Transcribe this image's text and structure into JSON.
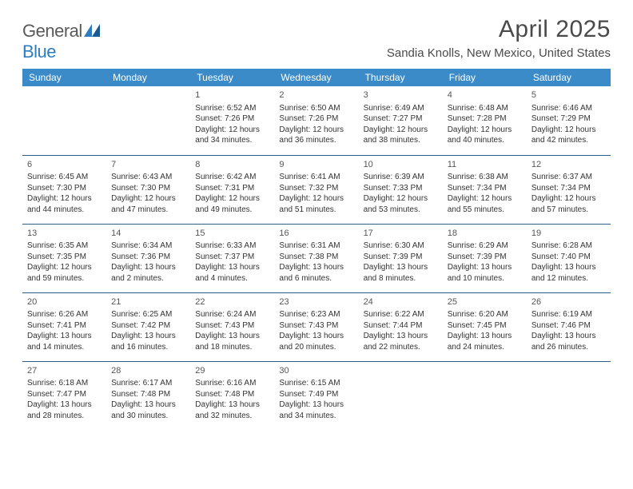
{
  "brand": {
    "part1": "General",
    "part2": "Blue"
  },
  "title": "April 2025",
  "location": "Sandia Knolls, New Mexico, United States",
  "colors": {
    "header_bg": "#3b8bc9",
    "header_text": "#ffffff",
    "rule": "#2f5d87",
    "body_text": "#333333",
    "title_text": "#4a4a4a"
  },
  "day_names": [
    "Sunday",
    "Monday",
    "Tuesday",
    "Wednesday",
    "Thursday",
    "Friday",
    "Saturday"
  ],
  "weeks": [
    [
      null,
      null,
      {
        "n": "1",
        "sr": "Sunrise: 6:52 AM",
        "ss": "Sunset: 7:26 PM",
        "dl": "Daylight: 12 hours and 34 minutes."
      },
      {
        "n": "2",
        "sr": "Sunrise: 6:50 AM",
        "ss": "Sunset: 7:26 PM",
        "dl": "Daylight: 12 hours and 36 minutes."
      },
      {
        "n": "3",
        "sr": "Sunrise: 6:49 AM",
        "ss": "Sunset: 7:27 PM",
        "dl": "Daylight: 12 hours and 38 minutes."
      },
      {
        "n": "4",
        "sr": "Sunrise: 6:48 AM",
        "ss": "Sunset: 7:28 PM",
        "dl": "Daylight: 12 hours and 40 minutes."
      },
      {
        "n": "5",
        "sr": "Sunrise: 6:46 AM",
        "ss": "Sunset: 7:29 PM",
        "dl": "Daylight: 12 hours and 42 minutes."
      }
    ],
    [
      {
        "n": "6",
        "sr": "Sunrise: 6:45 AM",
        "ss": "Sunset: 7:30 PM",
        "dl": "Daylight: 12 hours and 44 minutes."
      },
      {
        "n": "7",
        "sr": "Sunrise: 6:43 AM",
        "ss": "Sunset: 7:30 PM",
        "dl": "Daylight: 12 hours and 47 minutes."
      },
      {
        "n": "8",
        "sr": "Sunrise: 6:42 AM",
        "ss": "Sunset: 7:31 PM",
        "dl": "Daylight: 12 hours and 49 minutes."
      },
      {
        "n": "9",
        "sr": "Sunrise: 6:41 AM",
        "ss": "Sunset: 7:32 PM",
        "dl": "Daylight: 12 hours and 51 minutes."
      },
      {
        "n": "10",
        "sr": "Sunrise: 6:39 AM",
        "ss": "Sunset: 7:33 PM",
        "dl": "Daylight: 12 hours and 53 minutes."
      },
      {
        "n": "11",
        "sr": "Sunrise: 6:38 AM",
        "ss": "Sunset: 7:34 PM",
        "dl": "Daylight: 12 hours and 55 minutes."
      },
      {
        "n": "12",
        "sr": "Sunrise: 6:37 AM",
        "ss": "Sunset: 7:34 PM",
        "dl": "Daylight: 12 hours and 57 minutes."
      }
    ],
    [
      {
        "n": "13",
        "sr": "Sunrise: 6:35 AM",
        "ss": "Sunset: 7:35 PM",
        "dl": "Daylight: 12 hours and 59 minutes."
      },
      {
        "n": "14",
        "sr": "Sunrise: 6:34 AM",
        "ss": "Sunset: 7:36 PM",
        "dl": "Daylight: 13 hours and 2 minutes."
      },
      {
        "n": "15",
        "sr": "Sunrise: 6:33 AM",
        "ss": "Sunset: 7:37 PM",
        "dl": "Daylight: 13 hours and 4 minutes."
      },
      {
        "n": "16",
        "sr": "Sunrise: 6:31 AM",
        "ss": "Sunset: 7:38 PM",
        "dl": "Daylight: 13 hours and 6 minutes."
      },
      {
        "n": "17",
        "sr": "Sunrise: 6:30 AM",
        "ss": "Sunset: 7:39 PM",
        "dl": "Daylight: 13 hours and 8 minutes."
      },
      {
        "n": "18",
        "sr": "Sunrise: 6:29 AM",
        "ss": "Sunset: 7:39 PM",
        "dl": "Daylight: 13 hours and 10 minutes."
      },
      {
        "n": "19",
        "sr": "Sunrise: 6:28 AM",
        "ss": "Sunset: 7:40 PM",
        "dl": "Daylight: 13 hours and 12 minutes."
      }
    ],
    [
      {
        "n": "20",
        "sr": "Sunrise: 6:26 AM",
        "ss": "Sunset: 7:41 PM",
        "dl": "Daylight: 13 hours and 14 minutes."
      },
      {
        "n": "21",
        "sr": "Sunrise: 6:25 AM",
        "ss": "Sunset: 7:42 PM",
        "dl": "Daylight: 13 hours and 16 minutes."
      },
      {
        "n": "22",
        "sr": "Sunrise: 6:24 AM",
        "ss": "Sunset: 7:43 PM",
        "dl": "Daylight: 13 hours and 18 minutes."
      },
      {
        "n": "23",
        "sr": "Sunrise: 6:23 AM",
        "ss": "Sunset: 7:43 PM",
        "dl": "Daylight: 13 hours and 20 minutes."
      },
      {
        "n": "24",
        "sr": "Sunrise: 6:22 AM",
        "ss": "Sunset: 7:44 PM",
        "dl": "Daylight: 13 hours and 22 minutes."
      },
      {
        "n": "25",
        "sr": "Sunrise: 6:20 AM",
        "ss": "Sunset: 7:45 PM",
        "dl": "Daylight: 13 hours and 24 minutes."
      },
      {
        "n": "26",
        "sr": "Sunrise: 6:19 AM",
        "ss": "Sunset: 7:46 PM",
        "dl": "Daylight: 13 hours and 26 minutes."
      }
    ],
    [
      {
        "n": "27",
        "sr": "Sunrise: 6:18 AM",
        "ss": "Sunset: 7:47 PM",
        "dl": "Daylight: 13 hours and 28 minutes."
      },
      {
        "n": "28",
        "sr": "Sunrise: 6:17 AM",
        "ss": "Sunset: 7:48 PM",
        "dl": "Daylight: 13 hours and 30 minutes."
      },
      {
        "n": "29",
        "sr": "Sunrise: 6:16 AM",
        "ss": "Sunset: 7:48 PM",
        "dl": "Daylight: 13 hours and 32 minutes."
      },
      {
        "n": "30",
        "sr": "Sunrise: 6:15 AM",
        "ss": "Sunset: 7:49 PM",
        "dl": "Daylight: 13 hours and 34 minutes."
      },
      null,
      null,
      null
    ]
  ]
}
